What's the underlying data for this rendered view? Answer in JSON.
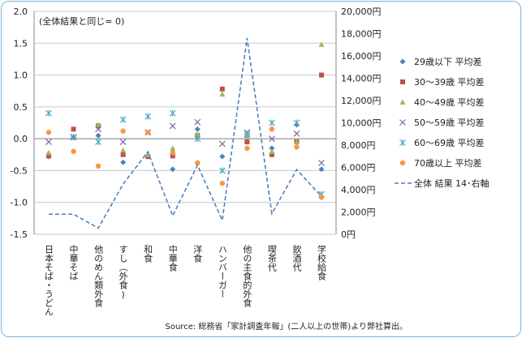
{
  "chart_data": {
    "type": "scatter",
    "note": "(全体結果と同じ= 0)",
    "source": "Source: 総務省「家計調査年報」(二人以上の世帯)より弊社算出。",
    "categories": [
      "日本そば・うどん",
      "中華そば",
      "他のめん類外食",
      "すし（外食)",
      "和食",
      "中華食",
      "洋食",
      "ハンバーガー",
      "他の主食的外食",
      "喫茶代",
      "飲酒代",
      "学校給食"
    ],
    "y_left": {
      "min": -1.5,
      "max": 2.0,
      "step": 0.5,
      "ticks": [
        "-1.5",
        "-1.0",
        "-0.5",
        "0.0",
        "0.5",
        "1.0",
        "1.5",
        "2.0"
      ]
    },
    "y_right": {
      "min": 0,
      "max": 20000,
      "step": 2000,
      "ticks": [
        "0円",
        "2,000円",
        "4,000円",
        "6,000円",
        "8,000円",
        "10,000円",
        "12,000円",
        "14,000円",
        "16,000円",
        "18,000円",
        "20,000円"
      ]
    },
    "series": [
      {
        "name": "29歳以下 平均差",
        "marker": "diamond",
        "color": "#4f81bd",
        "values": [
          -0.28,
          0.02,
          0.05,
          -0.37,
          -0.28,
          -0.48,
          0.15,
          -0.28,
          -0.05,
          -0.15,
          0.22,
          -0.48
        ]
      },
      {
        "name": "30～39歳 平均差",
        "marker": "square",
        "color": "#c0504d",
        "values": [
          -0.27,
          0.15,
          0.2,
          -0.25,
          -0.28,
          -0.27,
          0.05,
          0.78,
          -0.05,
          -0.25,
          -0.05,
          1.0
        ]
      },
      {
        "name": "40～49歳 平均差",
        "marker": "triangle",
        "color": "#9bbb59",
        "values": [
          -0.22,
          0.02,
          0.22,
          -0.18,
          -0.25,
          -0.15,
          0.07,
          0.7,
          0.05,
          -0.2,
          -0.05,
          1.48
        ]
      },
      {
        "name": "50～59歳 平均差",
        "marker": "x",
        "color": "#8064a2",
        "values": [
          -0.05,
          0.02,
          0.15,
          -0.05,
          0.1,
          0.2,
          0.26,
          -0.08,
          0.1,
          0.0,
          0.08,
          -0.38
        ]
      },
      {
        "name": "60～69歳 平均差",
        "marker": "star",
        "color": "#4bacc6",
        "values": [
          0.4,
          0.03,
          -0.05,
          0.3,
          0.35,
          0.4,
          0.0,
          -0.5,
          0.07,
          0.25,
          0.25,
          -0.87
        ]
      },
      {
        "name": "70歳以上 平均差",
        "marker": "circle",
        "color": "#f79646",
        "values": [
          0.1,
          -0.2,
          -0.43,
          0.12,
          0.1,
          -0.22,
          -0.38,
          -0.7,
          -0.15,
          0.15,
          -0.13,
          -0.92
        ]
      },
      {
        "name": "全体 結果 14･右軸",
        "axis": "right",
        "style": "dashed-line",
        "color": "#4f81bd",
        "values": [
          1800,
          1800,
          550,
          4500,
          7400,
          1650,
          6200,
          1250,
          17600,
          1850,
          5800,
          3400
        ]
      }
    ]
  }
}
